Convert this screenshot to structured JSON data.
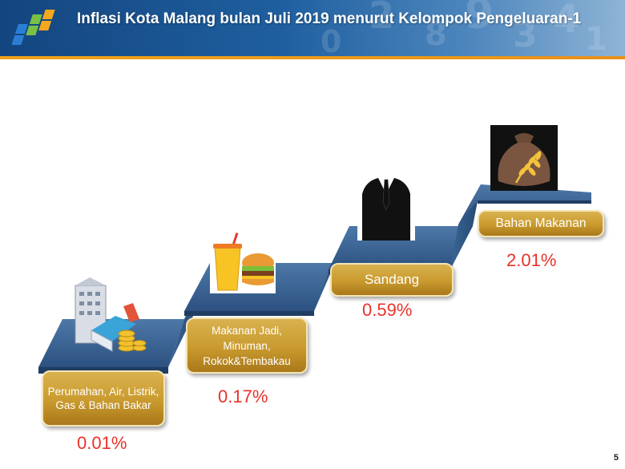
{
  "header": {
    "title": "Inflasi Kota Malang bulan Juli 2019 menurut Kelompok Pengeluaran-1"
  },
  "colors": {
    "header_blue": "#1f5f9f",
    "stripe_orange": "#f0a21a",
    "stair_blue": "#2f5583",
    "label_gold": "#c99a2e",
    "percent_red": "#e8322a"
  },
  "groups": [
    {
      "label": "Perumahan, Air, Listrik, Gas & Bahan Bakar",
      "value": "0.01%",
      "icon": "building-coins-icon"
    },
    {
      "label": "Makanan Jadi, Minuman, Rokok&Tembakau",
      "value": "0.17%",
      "icon": "fast-food-icon"
    },
    {
      "label": "Sandang",
      "value": "0.59%",
      "icon": "suit-icon"
    },
    {
      "label": "Bahan Makanan",
      "value": "2.01%",
      "icon": "grain-sack-icon"
    }
  ],
  "page_number": "5"
}
